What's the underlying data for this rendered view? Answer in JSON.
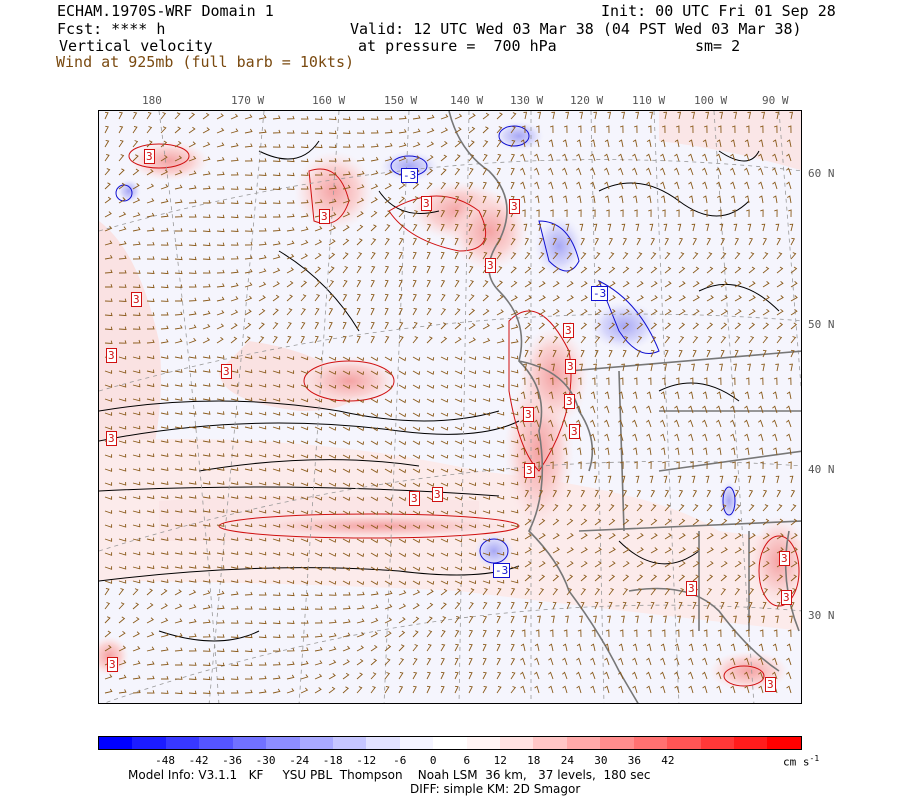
{
  "header": {
    "model_domain": "ECHAM.1970S-WRF Domain 1",
    "init": "Init: 00 UTC Fri 01 Sep 28",
    "fcst": "Fcst: **** h",
    "valid": "Valid: 12 UTC Wed 03 Mar 38 (04 PST Wed 03 Mar 38)",
    "field": "Vertical velocity",
    "pressure": "at pressure =  700 hPa",
    "smooth": "sm= 2",
    "wind": "Wind at 925mb (full barb = 10kts)"
  },
  "lon_labels": [
    "180",
    "170 W",
    "160 W",
    "150 W",
    "140 W",
    "130 W",
    "120 W",
    "110 W",
    "100 W",
    "90 W"
  ],
  "lat_labels": [
    "60 N",
    "50 N",
    "40 N",
    "30 N"
  ],
  "contour_labels": [
    "3",
    "3",
    "-3",
    "3",
    "3",
    "3",
    "3",
    "3",
    "3",
    "3",
    "3",
    "3",
    "3",
    "3",
    "-3",
    "3",
    "3",
    "3",
    "3",
    "-3",
    "3",
    "3",
    "3",
    "3",
    "3"
  ],
  "colorbar": {
    "colors": [
      "#0000ff",
      "#1c1cff",
      "#3838ff",
      "#5555ff",
      "#7171ff",
      "#8d8dff",
      "#aaaaff",
      "#c6c6ff",
      "#e2e2ff",
      "#f4f4ff",
      "#ffffff",
      "#fff4f4",
      "#ffe2e2",
      "#ffc6c6",
      "#ffaaaa",
      "#ff8d8d",
      "#ff7171",
      "#ff5555",
      "#ff3838",
      "#ff1c1c",
      "#ff0000"
    ],
    "labels": [
      "-48",
      "-42",
      "-36",
      "-30",
      "-24",
      "-18",
      "-12",
      "-6",
      "0",
      "6",
      "12",
      "18",
      "24",
      "30",
      "36",
      "42"
    ],
    "units": "cm s",
    "units_sup": "-1"
  },
  "footer": {
    "line1": "Model Info: V3.1.1   KF     YSU PBL  Thompson    Noah LSM  36 km,   37 levels,  180 sec",
    "line2": "DIFF: simple KM: 2D Smagor"
  }
}
